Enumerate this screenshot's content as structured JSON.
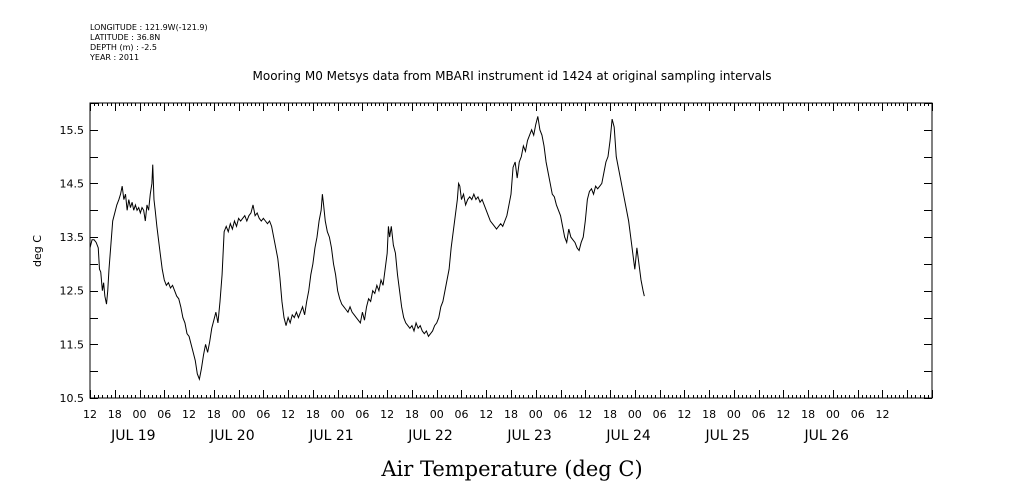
{
  "header": {
    "meta_lines": [
      "LONGITUDE : 121.9W(-121.9)",
      "LATITUDE : 36.8N",
      "DEPTH (m) : -2.5",
      "YEAR : 2011"
    ]
  },
  "chart_data": {
    "type": "line",
    "title": "Mooring M0 Metsys data from MBARI instrument id 1424 at original sampling intervals",
    "xlabel": "Air Temperature (deg C)",
    "ylabel": "deg C",
    "ylim": [
      10.5,
      16.0
    ],
    "yticks": [
      10.5,
      11.5,
      12.5,
      13.5,
      14.5,
      15.5
    ],
    "xlim_hours": [
      12,
      216
    ],
    "xtick_labels": [
      "12",
      "18",
      "00",
      "06",
      "12",
      "18",
      "00",
      "06",
      "12",
      "18",
      "00",
      "06",
      "12",
      "18",
      "00",
      "06",
      "12",
      "18",
      "00",
      "06",
      "12",
      "18",
      "00",
      "06",
      "12",
      "18",
      "00",
      "06",
      "12",
      "18",
      "00",
      "06",
      "12"
    ],
    "day_labels": [
      "JUL 19",
      "JUL 20",
      "JUL 21",
      "JUL 22",
      "JUL 23",
      "JUL 24",
      "JUL 25",
      "JUL 26"
    ],
    "grid": false,
    "series": [
      {
        "color": "#000000",
        "points": [
          [
            12,
            13.3
          ],
          [
            12.5,
            13.45
          ],
          [
            13,
            13.45
          ],
          [
            13.5,
            13.4
          ],
          [
            14,
            13.3
          ],
          [
            14.3,
            12.9
          ],
          [
            14.6,
            12.85
          ],
          [
            15,
            12.5
          ],
          [
            15.3,
            12.65
          ],
          [
            15.6,
            12.4
          ],
          [
            16,
            12.25
          ],
          [
            16.3,
            12.5
          ],
          [
            16.6,
            12.9
          ],
          [
            17,
            13.3
          ],
          [
            17.5,
            13.8
          ],
          [
            18,
            13.95
          ],
          [
            18.5,
            14.1
          ],
          [
            19,
            14.2
          ],
          [
            19.4,
            14.3
          ],
          [
            19.8,
            14.45
          ],
          [
            20.2,
            14.2
          ],
          [
            20.6,
            14.3
          ],
          [
            21,
            14.0
          ],
          [
            21.4,
            14.2
          ],
          [
            21.8,
            14.05
          ],
          [
            22.2,
            14.15
          ],
          [
            22.6,
            14.0
          ],
          [
            23,
            14.1
          ],
          [
            23.4,
            14.0
          ],
          [
            23.8,
            14.05
          ],
          [
            24.2,
            13.95
          ],
          [
            24.6,
            14.05
          ],
          [
            25,
            14.0
          ],
          [
            25.4,
            13.8
          ],
          [
            25.8,
            14.1
          ],
          [
            26.2,
            14.0
          ],
          [
            26.6,
            14.3
          ],
          [
            27,
            14.5
          ],
          [
            27.2,
            14.85
          ],
          [
            27.5,
            14.2
          ],
          [
            27.8,
            14.0
          ],
          [
            28.2,
            13.7
          ],
          [
            28.6,
            13.45
          ],
          [
            29,
            13.2
          ],
          [
            29.5,
            12.9
          ],
          [
            30,
            12.7
          ],
          [
            30.5,
            12.6
          ],
          [
            31,
            12.65
          ],
          [
            31.5,
            12.55
          ],
          [
            32,
            12.6
          ],
          [
            32.5,
            12.5
          ],
          [
            33,
            12.4
          ],
          [
            33.5,
            12.35
          ],
          [
            34,
            12.2
          ],
          [
            34.5,
            12.0
          ],
          [
            35,
            11.9
          ],
          [
            35.5,
            11.7
          ],
          [
            36,
            11.65
          ],
          [
            36.5,
            11.5
          ],
          [
            37,
            11.35
          ],
          [
            37.5,
            11.2
          ],
          [
            38,
            10.95
          ],
          [
            38.5,
            10.85
          ],
          [
            39,
            11.05
          ],
          [
            39.5,
            11.3
          ],
          [
            40,
            11.5
          ],
          [
            40.5,
            11.35
          ],
          [
            41,
            11.55
          ],
          [
            41.5,
            11.8
          ],
          [
            42,
            11.95
          ],
          [
            42.5,
            12.1
          ],
          [
            43,
            11.9
          ],
          [
            43.5,
            12.3
          ],
          [
            44,
            12.8
          ],
          [
            44.5,
            13.6
          ],
          [
            45,
            13.7
          ],
          [
            45.5,
            13.6
          ],
          [
            46,
            13.75
          ],
          [
            46.5,
            13.65
          ],
          [
            47,
            13.8
          ],
          [
            47.5,
            13.7
          ],
          [
            48,
            13.85
          ],
          [
            48.5,
            13.8
          ],
          [
            49,
            13.85
          ],
          [
            49.5,
            13.9
          ],
          [
            50,
            13.8
          ],
          [
            50.5,
            13.9
          ],
          [
            51,
            13.95
          ],
          [
            51.5,
            14.1
          ],
          [
            52,
            13.9
          ],
          [
            52.5,
            13.95
          ],
          [
            53,
            13.85
          ],
          [
            53.5,
            13.8
          ],
          [
            54,
            13.85
          ],
          [
            54.5,
            13.8
          ],
          [
            55,
            13.75
          ],
          [
            55.5,
            13.8
          ],
          [
            56,
            13.7
          ],
          [
            56.5,
            13.5
          ],
          [
            57,
            13.3
          ],
          [
            57.5,
            13.1
          ],
          [
            58,
            12.75
          ],
          [
            58.5,
            12.3
          ],
          [
            59,
            12.0
          ],
          [
            59.5,
            11.85
          ],
          [
            60,
            12.0
          ],
          [
            60.5,
            11.9
          ],
          [
            61,
            12.05
          ],
          [
            61.5,
            12.0
          ],
          [
            62,
            12.1
          ],
          [
            62.5,
            12.0
          ],
          [
            63,
            12.1
          ],
          [
            63.5,
            12.2
          ],
          [
            64,
            12.05
          ],
          [
            64.5,
            12.3
          ],
          [
            65,
            12.5
          ],
          [
            65.5,
            12.8
          ],
          [
            66,
            13.0
          ],
          [
            66.5,
            13.3
          ],
          [
            67,
            13.5
          ],
          [
            67.5,
            13.8
          ],
          [
            68,
            14.0
          ],
          [
            68.3,
            14.3
          ],
          [
            68.6,
            14.1
          ],
          [
            69,
            13.8
          ],
          [
            69.5,
            13.6
          ],
          [
            70,
            13.5
          ],
          [
            70.5,
            13.3
          ],
          [
            71,
            13.0
          ],
          [
            71.5,
            12.8
          ],
          [
            72,
            12.5
          ],
          [
            72.5,
            12.35
          ],
          [
            73,
            12.25
          ],
          [
            73.5,
            12.2
          ],
          [
            74,
            12.15
          ],
          [
            74.5,
            12.1
          ],
          [
            75,
            12.2
          ],
          [
            75.5,
            12.1
          ],
          [
            76,
            12.05
          ],
          [
            76.5,
            12.0
          ],
          [
            77,
            11.95
          ],
          [
            77.5,
            11.9
          ],
          [
            78,
            12.1
          ],
          [
            78.5,
            11.95
          ],
          [
            79,
            12.2
          ],
          [
            79.5,
            12.35
          ],
          [
            80,
            12.3
          ],
          [
            80.5,
            12.5
          ],
          [
            81,
            12.45
          ],
          [
            81.5,
            12.6
          ],
          [
            82,
            12.5
          ],
          [
            82.5,
            12.7
          ],
          [
            83,
            12.6
          ],
          [
            83.5,
            12.9
          ],
          [
            84,
            13.2
          ],
          [
            84.3,
            13.7
          ],
          [
            84.6,
            13.5
          ],
          [
            85,
            13.7
          ],
          [
            85.5,
            13.35
          ],
          [
            86,
            13.2
          ],
          [
            86.5,
            12.8
          ],
          [
            87,
            12.5
          ],
          [
            87.5,
            12.2
          ],
          [
            88,
            12.0
          ],
          [
            88.5,
            11.9
          ],
          [
            89,
            11.85
          ],
          [
            89.5,
            11.8
          ],
          [
            90,
            11.85
          ],
          [
            90.5,
            11.75
          ],
          [
            91,
            11.9
          ],
          [
            91.5,
            11.8
          ],
          [
            92,
            11.85
          ],
          [
            92.5,
            11.75
          ],
          [
            93,
            11.7
          ],
          [
            93.5,
            11.75
          ],
          [
            94,
            11.65
          ],
          [
            94.5,
            11.7
          ],
          [
            95,
            11.75
          ],
          [
            95.5,
            11.85
          ],
          [
            96,
            11.9
          ],
          [
            96.5,
            12.0
          ],
          [
            97,
            12.2
          ],
          [
            97.5,
            12.3
          ],
          [
            98,
            12.5
          ],
          [
            98.5,
            12.7
          ],
          [
            99,
            12.9
          ],
          [
            99.5,
            13.3
          ],
          [
            100,
            13.6
          ],
          [
            100.5,
            13.9
          ],
          [
            101,
            14.2
          ],
          [
            101.3,
            14.5
          ],
          [
            101.6,
            14.45
          ],
          [
            102,
            14.2
          ],
          [
            102.5,
            14.3
          ],
          [
            103,
            14.1
          ],
          [
            103.5,
            14.2
          ],
          [
            104,
            14.25
          ],
          [
            104.5,
            14.2
          ],
          [
            105,
            14.3
          ],
          [
            105.5,
            14.2
          ],
          [
            106,
            14.25
          ],
          [
            106.5,
            14.15
          ],
          [
            107,
            14.2
          ],
          [
            107.5,
            14.1
          ],
          [
            108,
            14.0
          ],
          [
            108.5,
            13.9
          ],
          [
            109,
            13.8
          ],
          [
            109.5,
            13.75
          ],
          [
            110,
            13.7
          ],
          [
            110.5,
            13.65
          ],
          [
            111,
            13.7
          ],
          [
            111.5,
            13.75
          ],
          [
            112,
            13.7
          ],
          [
            112.5,
            13.8
          ],
          [
            113,
            13.9
          ],
          [
            113.5,
            14.1
          ],
          [
            114,
            14.3
          ],
          [
            114.5,
            14.8
          ],
          [
            115,
            14.9
          ],
          [
            115.5,
            14.6
          ],
          [
            116,
            14.9
          ],
          [
            116.5,
            15.0
          ],
          [
            117,
            15.2
          ],
          [
            117.5,
            15.1
          ],
          [
            118,
            15.3
          ],
          [
            118.5,
            15.4
          ],
          [
            119,
            15.5
          ],
          [
            119.5,
            15.4
          ],
          [
            120,
            15.6
          ],
          [
            120.5,
            15.75
          ],
          [
            121,
            15.5
          ],
          [
            121.5,
            15.4
          ],
          [
            122,
            15.2
          ],
          [
            122.5,
            14.9
          ],
          [
            123,
            14.7
          ],
          [
            123.5,
            14.5
          ],
          [
            124,
            14.3
          ],
          [
            124.5,
            14.25
          ],
          [
            125,
            14.1
          ],
          [
            125.5,
            14.0
          ],
          [
            126,
            13.9
          ],
          [
            126.5,
            13.7
          ],
          [
            127,
            13.5
          ],
          [
            127.5,
            13.4
          ],
          [
            128,
            13.65
          ],
          [
            128.5,
            13.5
          ],
          [
            129,
            13.45
          ],
          [
            129.5,
            13.4
          ],
          [
            130,
            13.3
          ],
          [
            130.5,
            13.25
          ],
          [
            131,
            13.4
          ],
          [
            131.5,
            13.5
          ],
          [
            132,
            13.8
          ],
          [
            132.5,
            14.2
          ],
          [
            133,
            14.35
          ],
          [
            133.5,
            14.4
          ],
          [
            134,
            14.3
          ],
          [
            134.5,
            14.45
          ],
          [
            135,
            14.4
          ],
          [
            135.5,
            14.45
          ],
          [
            136,
            14.5
          ],
          [
            136.5,
            14.7
          ],
          [
            137,
            14.9
          ],
          [
            137.5,
            15.0
          ],
          [
            138,
            15.3
          ],
          [
            138.5,
            15.7
          ],
          [
            139,
            15.55
          ],
          [
            139.5,
            15.0
          ],
          [
            140,
            14.8
          ],
          [
            140.5,
            14.6
          ],
          [
            141,
            14.4
          ],
          [
            141.5,
            14.2
          ],
          [
            142,
            14.0
          ],
          [
            142.5,
            13.8
          ],
          [
            143,
            13.5
          ],
          [
            143.5,
            13.2
          ],
          [
            144,
            12.9
          ],
          [
            144.5,
            13.3
          ],
          [
            145,
            13.0
          ],
          [
            145.5,
            12.7
          ],
          [
            146,
            12.5
          ],
          [
            146.3,
            12.4
          ]
        ]
      }
    ]
  }
}
